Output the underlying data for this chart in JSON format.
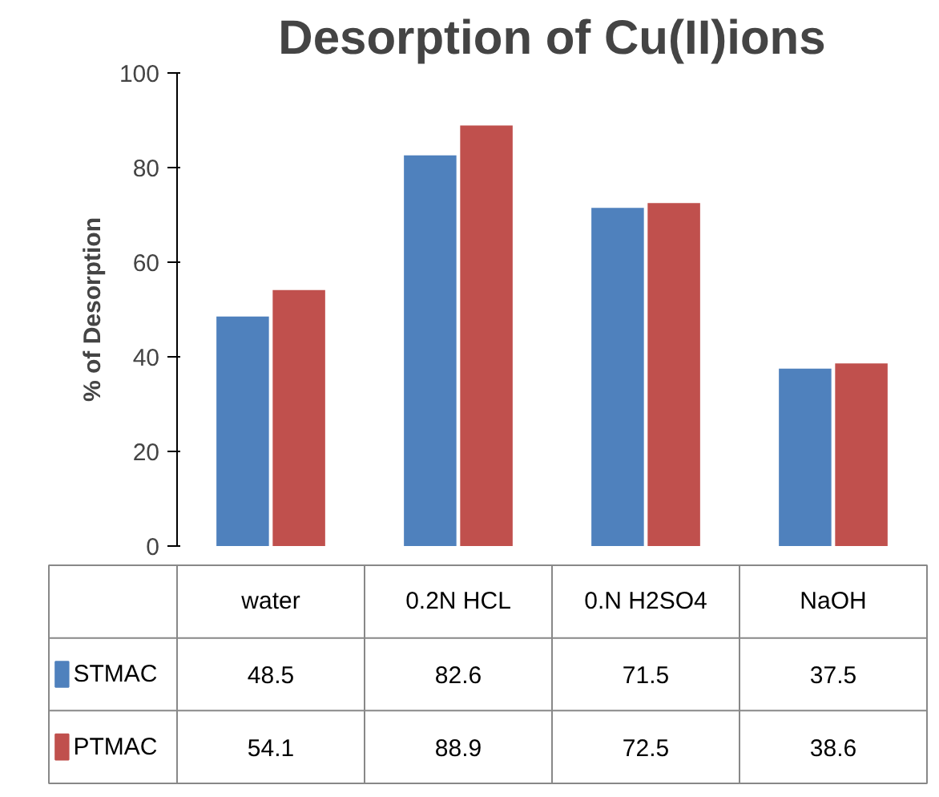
{
  "chart_data": {
    "type": "bar",
    "title": "Desorption of Cu(II)ions",
    "ylabel": "% of Desorption",
    "categories": [
      "water",
      "0.2N HCL",
      "0.N H2SO4",
      "NaOH"
    ],
    "series": [
      {
        "name": "STMAC",
        "color": "#4f81bd",
        "values": [
          48.5,
          82.6,
          71.5,
          37.5
        ]
      },
      {
        "name": "PTMAC",
        "color": "#c0504d",
        "values": [
          54.1,
          88.9,
          72.5,
          38.6
        ]
      }
    ],
    "ylim": [
      0,
      100
    ],
    "yticks": [
      0,
      20,
      40,
      60,
      80,
      100
    ],
    "grid": false,
    "legend": "bottom",
    "data_labels": true
  }
}
